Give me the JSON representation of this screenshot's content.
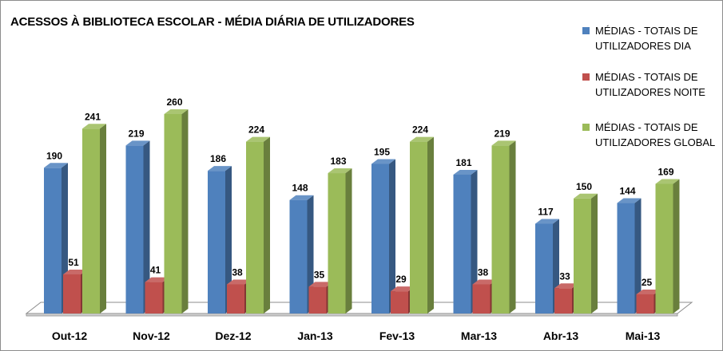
{
  "chart_data": {
    "type": "bar",
    "title": "ACESSOS À BIBLIOTECA ESCOLAR - MÉDIA DIÁRIA DE UTILIZADORES",
    "categories": [
      "Out-12",
      "Nov-12",
      "Dez-12",
      "Jan-13",
      "Fev-13",
      "Mar-13",
      "Abr-13",
      "Mai-13"
    ],
    "series": [
      {
        "name": "MÉDIAS - TOTAIS DE UTILIZADORES DIA",
        "color": "#4F81BD",
        "values": [
          190,
          219,
          186,
          148,
          195,
          181,
          117,
          144
        ]
      },
      {
        "name": "MÉDIAS - TOTAIS DE UTILIZADORES NOITE",
        "color": "#C0504D",
        "values": [
          51,
          41,
          38,
          35,
          29,
          38,
          33,
          25
        ]
      },
      {
        "name": "MÉDIAS - TOTAIS DE UTILIZADORES GLOBAL",
        "color": "#9BBB59",
        "values": [
          241,
          260,
          224,
          183,
          224,
          219,
          150,
          169
        ]
      }
    ],
    "ylim": [
      0,
      260
    ],
    "grid": false,
    "legend": "right",
    "three_d": true
  }
}
